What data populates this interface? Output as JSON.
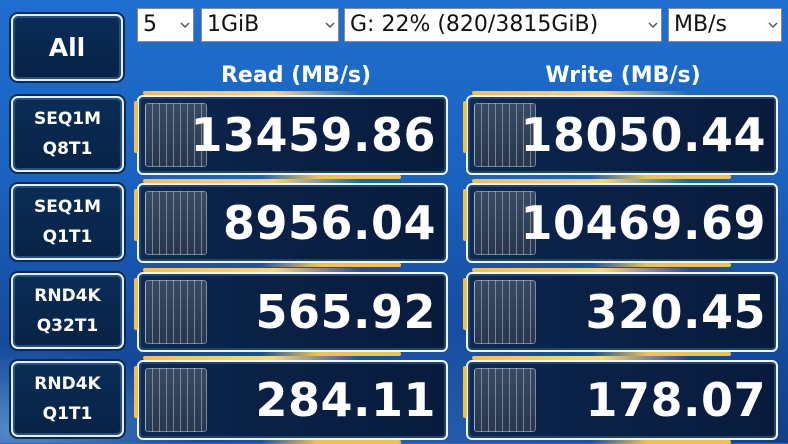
{
  "controls": {
    "runs": "5",
    "size": "1GiB",
    "drive": "G: 22% (820/3815GiB)",
    "unit": "MB/s"
  },
  "all_button": "All",
  "columns": {
    "read": "Read (MB/s)",
    "write": "Write (MB/s)"
  },
  "rows": [
    {
      "line1": "SEQ1M",
      "line2": "Q8T1",
      "read": "13459.86",
      "write": "18050.44"
    },
    {
      "line1": "SEQ1M",
      "line2": "Q1T1",
      "read": "8956.04",
      "write": "10469.69"
    },
    {
      "line1": "RND4K",
      "line2": "Q32T1",
      "read": "565.92",
      "write": "320.45"
    },
    {
      "line1": "RND4K",
      "line2": "Q1T1",
      "read": "284.11",
      "write": "178.07"
    }
  ]
}
